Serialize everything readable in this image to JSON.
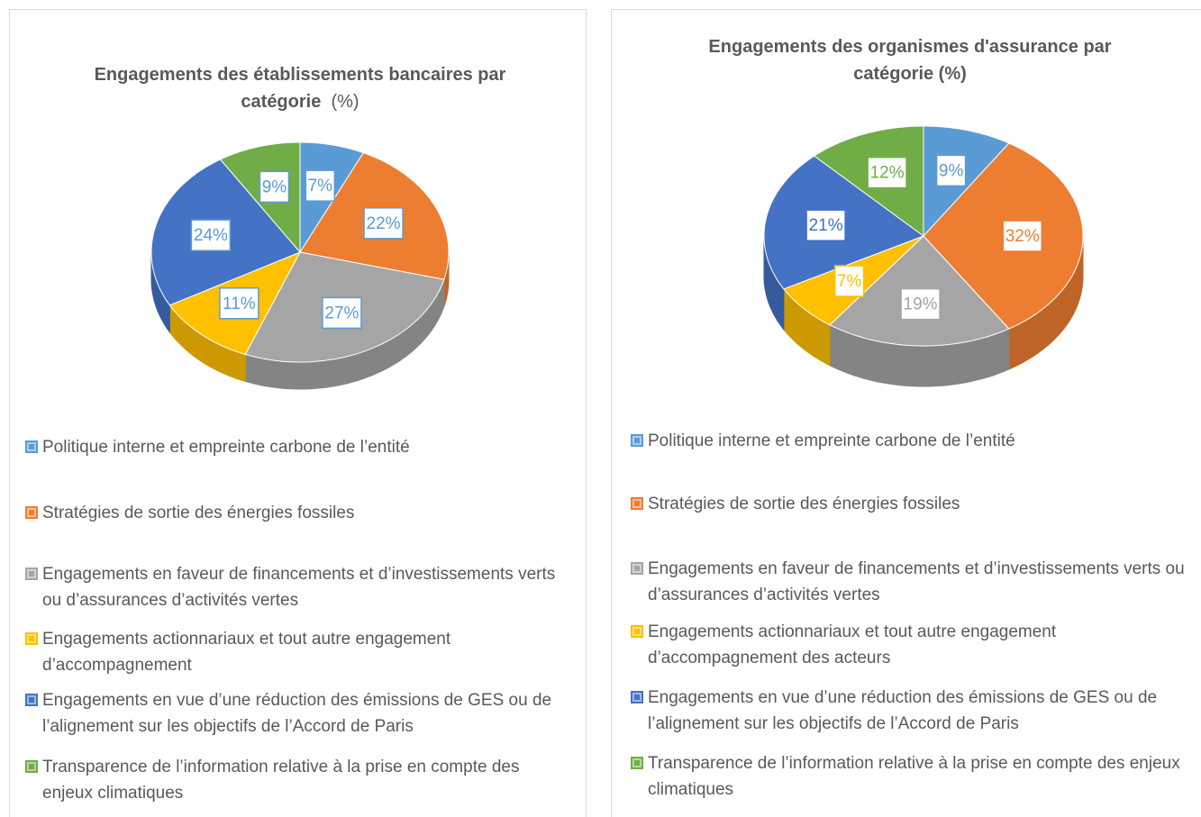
{
  "chart_data": [
    {
      "type": "pie",
      "title": "Engagements des établissements bancaires par catégorie",
      "title_unit": "(%)",
      "categories": [
        "Politique interne et empreinte carbone de l’entité",
        "Stratégies de sortie des énergies fossiles",
        "Engagements en faveur de financements et d’investissements verts ou d’assurances d’activités vertes",
        "Engagements actionnariaux et tout autre engagement d’accompagnement",
        "Engagements en vue d’une réduction des émissions de GES ou de l’alignement sur les objectifs de l’Accord de Paris",
        "Transparence de l’information relative à la prise en compte des enjeux climatiques"
      ],
      "values": [
        7,
        22,
        27,
        11,
        24,
        9
      ],
      "value_labels": [
        "7%",
        "22%",
        "27%",
        "11%",
        "24%",
        "9%"
      ],
      "colors": [
        "#5b9bd5",
        "#ed7d31",
        "#a5a5a5",
        "#ffc000",
        "#4472c4",
        "#70ad47"
      ],
      "label_color": "#5b9bd5"
    },
    {
      "type": "pie",
      "title": "Engagements des organismes d'assurance par catégorie (%)",
      "categories": [
        "Politique interne et empreinte carbone de l’entité",
        "Stratégies de sortie des énergies fossiles",
        "Engagements en faveur de financements et d’investissements verts ou d’assurances d’activités vertes",
        "Engagements actionnariaux et tout autre engagement d’accompagnement des acteurs",
        "Engagements en vue d’une réduction des émissions de GES ou de l’alignement sur les objectifs de l’Accord de Paris",
        "Transparence de l’information relative à la prise en compte des enjeux climatiques"
      ],
      "values": [
        9,
        32,
        19,
        7,
        21,
        12
      ],
      "value_labels": [
        "9%",
        "32%",
        "19%",
        "7%",
        "21%",
        "12%"
      ],
      "colors": [
        "#5b9bd5",
        "#ed7d31",
        "#a5a5a5",
        "#ffc000",
        "#4472c4",
        "#70ad47"
      ]
    }
  ]
}
